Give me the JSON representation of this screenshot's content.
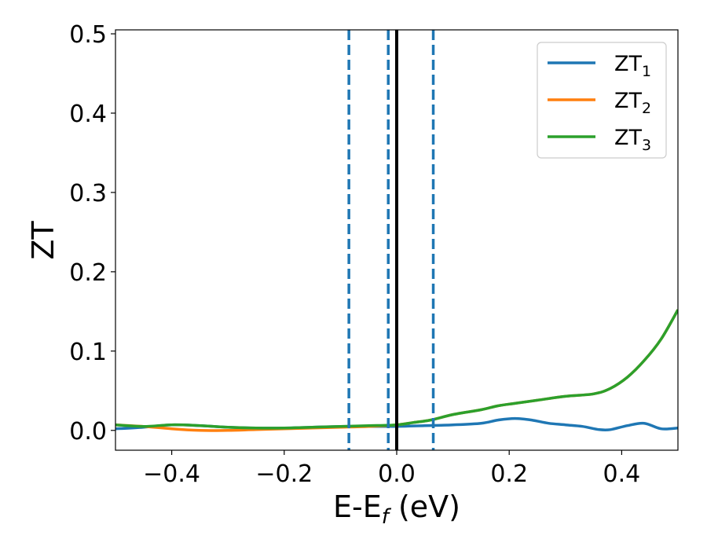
{
  "chart_data": {
    "type": "line",
    "title": "",
    "xlabel": {
      "main": "E-E",
      "sub": "f",
      "tail": " (eV)"
    },
    "ylabel": "ZT",
    "xlim": [
      -0.5,
      0.5
    ],
    "ylim": [
      -0.025,
      0.505
    ],
    "xticks": [
      -0.4,
      -0.2,
      0.0,
      0.2,
      0.4
    ],
    "xtick_labels": [
      "−0.4",
      "−0.2",
      "0.0",
      "0.2",
      "0.4"
    ],
    "yticks": [
      0.0,
      0.1,
      0.2,
      0.3,
      0.4,
      0.5
    ],
    "ytick_labels": [
      "0.0",
      "0.1",
      "0.2",
      "0.3",
      "0.4",
      "0.5"
    ],
    "grid": false,
    "legend_position": "top-right",
    "vlines": [
      {
        "x": -0.085,
        "style": "dashed",
        "color": "#1f77b4"
      },
      {
        "x": -0.015,
        "style": "dashed",
        "color": "#1f77b4"
      },
      {
        "x": 0.0,
        "style": "solid",
        "color": "#000000"
      },
      {
        "x": 0.065,
        "style": "dashed",
        "color": "#1f77b4"
      }
    ],
    "series": [
      {
        "name": "ZT",
        "sub": "1",
        "color": "#1f77b4",
        "x": [
          -0.5,
          -0.45,
          -0.4,
          -0.35,
          -0.3,
          -0.25,
          -0.2,
          -0.15,
          -0.1,
          -0.05,
          0.0,
          0.05,
          0.1,
          0.15,
          0.18,
          0.21,
          0.24,
          0.27,
          0.3,
          0.33,
          0.36,
          0.38,
          0.41,
          0.44,
          0.47,
          0.5
        ],
        "y": [
          0.002,
          0.004,
          0.007,
          0.006,
          0.004,
          0.003,
          0.003,
          0.004,
          0.005,
          0.005,
          0.005,
          0.006,
          0.007,
          0.009,
          0.013,
          0.015,
          0.013,
          0.009,
          0.007,
          0.005,
          0.001,
          0.001,
          0.006,
          0.009,
          0.002,
          0.003
        ]
      },
      {
        "name": "ZT",
        "sub": "2",
        "color": "#ff7f0e",
        "x": [
          -0.5,
          -0.45,
          -0.4,
          -0.35,
          -0.3,
          -0.25,
          -0.2,
          -0.15,
          -0.1,
          -0.05,
          0.0,
          0.03,
          0.06,
          0.1,
          0.15,
          0.18,
          0.21,
          0.25,
          0.3,
          0.35,
          0.38,
          0.41,
          0.44,
          0.47,
          0.5
        ],
        "y": [
          0.007,
          0.005,
          0.002,
          0.0,
          0.0,
          0.001,
          0.002,
          0.003,
          0.004,
          0.005,
          0.007,
          0.01,
          0.013,
          0.02,
          0.026,
          0.031,
          0.034,
          0.038,
          0.043,
          0.046,
          0.053,
          0.067,
          0.088,
          0.115,
          0.152
        ]
      },
      {
        "name": "ZT",
        "sub": "3",
        "color": "#2ca02c",
        "x": [
          -0.5,
          -0.45,
          -0.4,
          -0.35,
          -0.3,
          -0.25,
          -0.2,
          -0.15,
          -0.1,
          -0.05,
          0.0,
          0.03,
          0.06,
          0.1,
          0.15,
          0.18,
          0.21,
          0.25,
          0.3,
          0.35,
          0.38,
          0.41,
          0.44,
          0.47,
          0.5
        ],
        "y": [
          0.007,
          0.005,
          0.007,
          0.006,
          0.004,
          0.003,
          0.003,
          0.004,
          0.005,
          0.006,
          0.007,
          0.01,
          0.013,
          0.02,
          0.026,
          0.031,
          0.034,
          0.038,
          0.043,
          0.046,
          0.053,
          0.067,
          0.088,
          0.115,
          0.152
        ]
      }
    ]
  }
}
